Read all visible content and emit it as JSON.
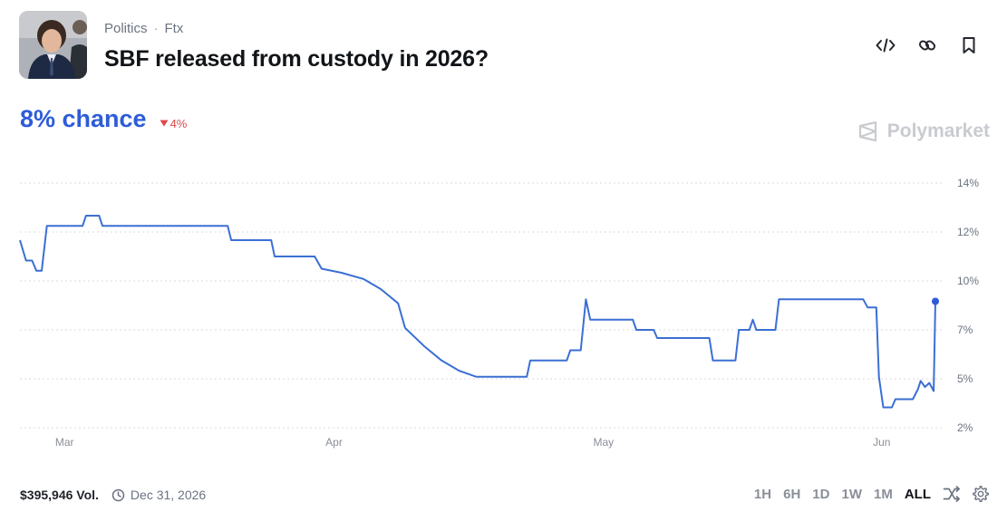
{
  "header": {
    "breadcrumb": [
      "Politics",
      "Ftx"
    ],
    "separator": "·",
    "title": "SBF released from custody in 2026?"
  },
  "market": {
    "chance": "8% chance",
    "delta": "4%",
    "delta_direction": "down",
    "brand": "Polymarket"
  },
  "footer": {
    "volume": "$395,946 Vol.",
    "end_date": "Dec 31, 2026",
    "ranges": [
      "1H",
      "6H",
      "1D",
      "1W",
      "1M",
      "ALL"
    ],
    "active_range": "ALL"
  },
  "colors": {
    "accent": "#2e5cd8",
    "line": "#3b6fd4",
    "down": "#e04848",
    "grid": "#d9dbe0"
  },
  "chart_data": {
    "type": "line",
    "title": "",
    "xlabel": "",
    "ylabel": "",
    "x_ticks": [
      "Mar",
      "Apr",
      "May",
      "Jun"
    ],
    "y_ticks": [
      "14%",
      "12%",
      "10%",
      "7%",
      "5%",
      "2%"
    ],
    "ylim": [
      2.3,
      14.3
    ],
    "grid": true,
    "series": [
      {
        "values": [
          [
            0.0,
            11.5
          ],
          [
            0.7,
            10.5
          ],
          [
            1.4,
            10.5
          ],
          [
            1.9,
            10.0
          ],
          [
            2.5,
            10.0
          ],
          [
            3.1,
            12.2
          ],
          [
            7.2,
            12.2
          ],
          [
            7.6,
            12.7
          ],
          [
            9.1,
            12.7
          ],
          [
            9.5,
            12.2
          ],
          [
            23.9,
            12.2
          ],
          [
            24.3,
            11.5
          ],
          [
            28.9,
            11.5
          ],
          [
            29.3,
            10.7
          ],
          [
            33.9,
            10.7
          ],
          [
            34.7,
            10.1
          ],
          [
            37.0,
            9.9
          ],
          [
            39.5,
            9.6
          ],
          [
            41.5,
            9.1
          ],
          [
            43.5,
            8.4
          ],
          [
            44.3,
            7.2
          ],
          [
            46.5,
            6.3
          ],
          [
            48.5,
            5.6
          ],
          [
            50.5,
            5.1
          ],
          [
            52.5,
            4.8
          ],
          [
            58.3,
            4.8
          ],
          [
            58.7,
            5.6
          ],
          [
            62.9,
            5.6
          ],
          [
            63.3,
            6.1
          ],
          [
            64.5,
            6.1
          ],
          [
            65.1,
            8.6
          ],
          [
            65.6,
            7.6
          ],
          [
            70.5,
            7.6
          ],
          [
            70.9,
            7.1
          ],
          [
            72.9,
            7.1
          ],
          [
            73.3,
            6.7
          ],
          [
            79.3,
            6.7
          ],
          [
            79.7,
            5.6
          ],
          [
            82.3,
            5.6
          ],
          [
            82.7,
            7.1
          ],
          [
            83.9,
            7.1
          ],
          [
            84.3,
            7.6
          ],
          [
            84.7,
            7.1
          ],
          [
            86.9,
            7.1
          ],
          [
            87.3,
            8.6
          ],
          [
            97.0,
            8.6
          ],
          [
            97.5,
            8.2
          ],
          [
            98.5,
            8.2
          ],
          [
            98.8,
            4.8
          ],
          [
            99.3,
            3.3
          ],
          [
            100.3,
            3.3
          ],
          [
            100.7,
            3.7
          ],
          [
            102.7,
            3.7
          ],
          [
            103.3,
            4.2
          ],
          [
            103.6,
            4.6
          ],
          [
            104.1,
            4.3
          ],
          [
            104.6,
            4.5
          ],
          [
            105.1,
            4.1
          ],
          [
            105.3,
            8.5
          ]
        ]
      }
    ]
  }
}
